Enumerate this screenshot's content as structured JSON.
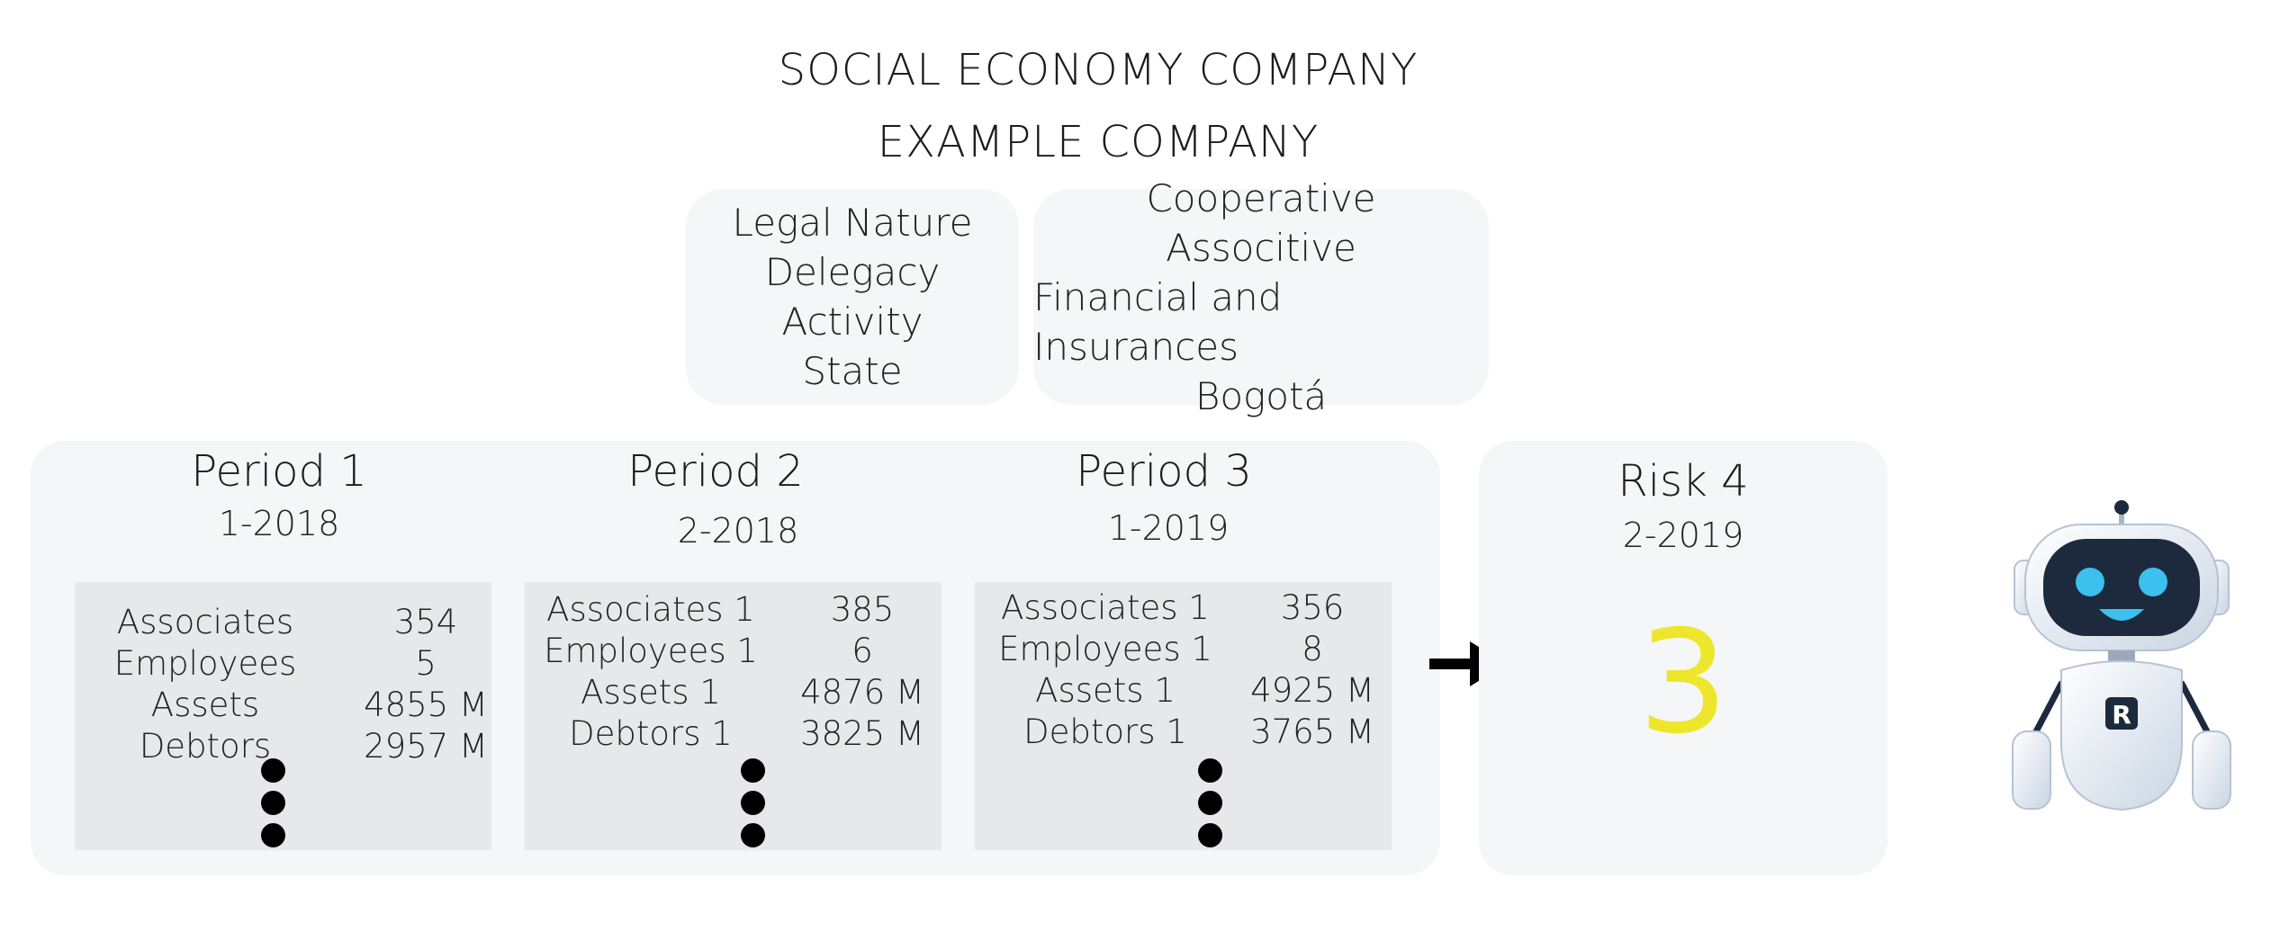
{
  "header": {
    "title": "SOCIAL ECONOMY COMPANY",
    "company": "EXAMPLE COMPANY"
  },
  "attributes": {
    "labels": [
      "Legal Nature",
      "Delegacy",
      "Activity",
      "State"
    ],
    "values": [
      "Cooperative",
      "Associtive",
      "Financial and Insurances",
      "Bogotá"
    ]
  },
  "periods": [
    {
      "title": "Period 1",
      "date": "1-2018",
      "rows": [
        {
          "label": "Associates",
          "value": "354"
        },
        {
          "label": "Employees",
          "value": "5"
        },
        {
          "label": "Assets",
          "value": "4855 M"
        },
        {
          "label": "Debtors",
          "value": "2957 M"
        }
      ]
    },
    {
      "title": "Period 2",
      "date": "2-2018",
      "rows": [
        {
          "label": "Associates 1",
          "value": "385"
        },
        {
          "label": "Employees 1",
          "value": "6"
        },
        {
          "label": "Assets 1",
          "value": "4876 M"
        },
        {
          "label": "Debtors 1",
          "value": "3825 M"
        }
      ]
    },
    {
      "title": "Period 3",
      "date": "1-2019",
      "rows": [
        {
          "label": "Associates 1",
          "value": "356"
        },
        {
          "label": "Employees 1",
          "value": "8"
        },
        {
          "label": "Assets 1",
          "value": "4925 M"
        },
        {
          "label": "Debtors 1",
          "value": "3765 M"
        }
      ]
    }
  ],
  "risk": {
    "title": "Risk 4",
    "date": "2-2019",
    "value": "3",
    "value_color": "#ede62a"
  },
  "icons": {
    "arrow": "arrow-right-icon",
    "robot": "robot-icon",
    "continuation": "vertical-ellipsis-icon"
  },
  "robot": {
    "badge_letter": "R",
    "eye_color": "#3cc0ee",
    "face_color": "#1d2a3d"
  }
}
